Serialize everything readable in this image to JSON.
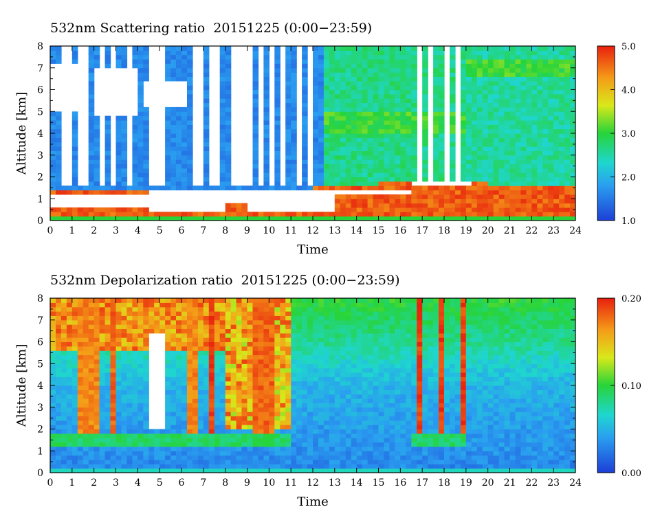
{
  "chart_data": [
    {
      "type": "heatmap",
      "title": "532nm Scattering ratio  20151225 (0:00−23:59)",
      "xlabel": "Time",
      "ylabel": "Altitude [km]",
      "xlim": [
        0,
        24
      ],
      "ylim": [
        0,
        8
      ],
      "x_ticks": [
        "0",
        "1",
        "2",
        "3",
        "4",
        "5",
        "6",
        "7",
        "8",
        "9",
        "10",
        "11",
        "12",
        "13",
        "14",
        "15",
        "16",
        "17",
        "18",
        "19",
        "20",
        "21",
        "22",
        "23",
        "24"
      ],
      "y_ticks": [
        "0",
        "1",
        "2",
        "3",
        "4",
        "5",
        "6",
        "7",
        "8"
      ],
      "colorbar": {
        "min": 1.0,
        "max": 5.0,
        "ticks": [
          "1.0",
          "2.0",
          "3.0",
          "4.0",
          "5.0"
        ]
      },
      "features": {
        "surface_layer_top_km": [
          [
            0,
            1.4
          ],
          [
            4.5,
            1.5
          ],
          [
            6,
            1.5
          ],
          [
            9,
            1.5
          ],
          [
            12,
            1.5
          ],
          [
            13,
            1.55
          ],
          [
            16.5,
            1.8
          ],
          [
            19,
            1.85
          ],
          [
            20,
            1.7
          ],
          [
            24,
            1.7
          ]
        ],
        "low_cloud_mask_km": [
          [
            0,
            0.6,
            1.3
          ],
          [
            4.5,
            0.45,
            1.5
          ],
          [
            8,
            0.7,
            1.4
          ],
          [
            9,
            0.3,
            1.4
          ],
          [
            13,
            1.1,
            1.5
          ],
          [
            14,
            1.15,
            1.35
          ],
          [
            16.5,
            1.5,
            1.8
          ],
          [
            19,
            1.6,
            1.9
          ]
        ],
        "upper_cloud_km": [
          [
            0.3,
            4.9,
            7.2
          ],
          [
            3.0,
            4.8,
            7.0
          ],
          [
            5.2,
            5.2,
            6.5
          ]
        ],
        "signal_gap_hours": [
          [
            0.6,
            0.9
          ],
          [
            1.3,
            1.7
          ],
          [
            2.2,
            2.4
          ],
          [
            2.8,
            3.0
          ],
          [
            3.5,
            3.7
          ],
          [
            4.5,
            5.3
          ],
          [
            6.6,
            6.9
          ],
          [
            7.2,
            7.8
          ],
          [
            8.2,
            9.3
          ],
          [
            9.5,
            9.7
          ],
          [
            10.0,
            10.2
          ],
          [
            10.5,
            10.7
          ],
          [
            11.2,
            11.4
          ],
          [
            11.8,
            12.0
          ],
          [
            16.7,
            16.9
          ],
          [
            17.3,
            17.5
          ],
          [
            18.0,
            18.2
          ],
          [
            18.6,
            18.8
          ]
        ]
      }
    },
    {
      "type": "heatmap",
      "title": "532nm Depolarization ratio  20151225 (0:00−23:59)",
      "xlabel": "Time",
      "ylabel": "Altitude [km]",
      "xlim": [
        0,
        24
      ],
      "ylim": [
        0,
        8
      ],
      "x_ticks": [
        "0",
        "1",
        "2",
        "3",
        "4",
        "5",
        "6",
        "7",
        "8",
        "9",
        "10",
        "11",
        "12",
        "13",
        "14",
        "15",
        "16",
        "17",
        "18",
        "19",
        "20",
        "21",
        "22",
        "23",
        "24"
      ],
      "y_ticks": [
        "0",
        "1",
        "2",
        "3",
        "4",
        "5",
        "6",
        "7",
        "8"
      ],
      "colorbar": {
        "min": 0.0,
        "max": 0.2,
        "ticks": [
          "0.00",
          "0.10",
          "0.20"
        ]
      },
      "features": {
        "background_by_altitude": [
          [
            0,
            0.03
          ],
          [
            2,
            0.04
          ],
          [
            4,
            0.05
          ],
          [
            6,
            0.08
          ],
          [
            8,
            0.1
          ]
        ],
        "high_depol_columns_hours": [
          [
            1.5,
            0.16
          ],
          [
            2.0,
            0.16
          ],
          [
            2.8,
            0.17
          ],
          [
            6.5,
            0.16
          ],
          [
            7.4,
            0.18
          ],
          [
            9.5,
            0.17
          ],
          [
            10.0,
            0.17
          ],
          [
            16.8,
            0.18
          ],
          [
            17.9,
            0.18
          ],
          [
            18.9,
            0.18
          ]
        ],
        "low_cloud_band_km": [
          1.2,
          1.8
        ]
      }
    }
  ]
}
